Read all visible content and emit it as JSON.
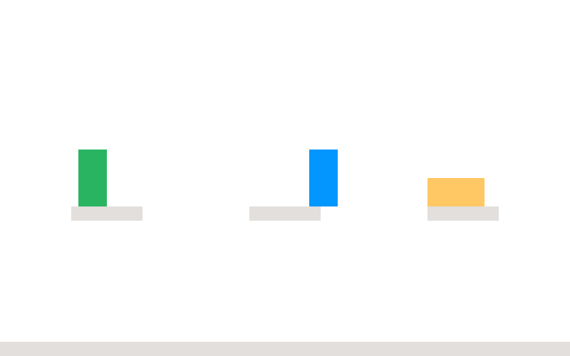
{
  "colors": {
    "background": "#ffffff",
    "platform": "#e2dfdc",
    "ground": "#e2dfdc",
    "block_green": "#29b462",
    "block_blue": "#0396fe",
    "block_orange": "#ffc865"
  },
  "objects": [
    {
      "kind": "block",
      "color_key": "block_green",
      "orientation": "vertical"
    },
    {
      "kind": "block",
      "color_key": "block_blue",
      "orientation": "vertical"
    },
    {
      "kind": "block",
      "color_key": "block_orange",
      "orientation": "horizontal"
    }
  ]
}
